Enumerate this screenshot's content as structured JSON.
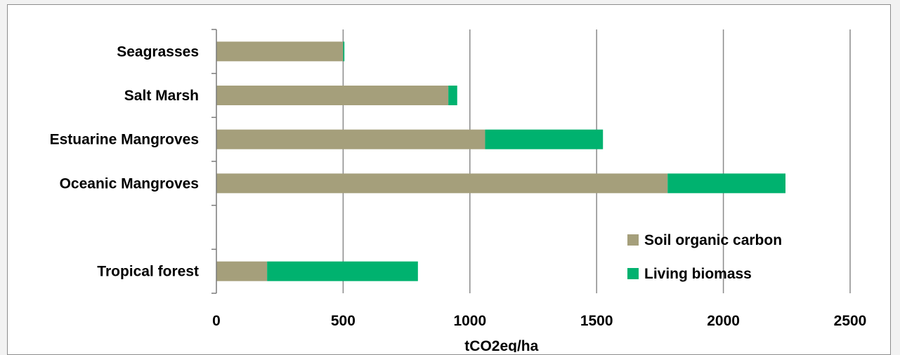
{
  "chart_data": {
    "type": "bar",
    "orientation": "horizontal",
    "stacked": true,
    "categories": [
      "Seagrasses",
      "Salt Marsh",
      "Estuarine Mangroves",
      "Oceanic Mangroves",
      "",
      "Tropical forest"
    ],
    "series": [
      {
        "name": "Soil organic carbon",
        "color": "#a59f7b",
        "values": [
          500,
          915,
          1060,
          1780,
          null,
          200
        ]
      },
      {
        "name": "Living biomass",
        "color": "#00b26f",
        "values": [
          5,
          35,
          465,
          465,
          null,
          595
        ]
      }
    ],
    "xlabel": "tCO2eq/ha",
    "ylabel": "",
    "xlim": [
      0,
      2500
    ],
    "xticks": [
      0,
      500,
      1000,
      1500,
      2000,
      2500
    ],
    "xtick_labels": [
      "0",
      "500",
      "1000",
      "1500",
      "2000",
      "2500"
    ],
    "grid": "vertical",
    "legend_position": "bottom-right"
  }
}
